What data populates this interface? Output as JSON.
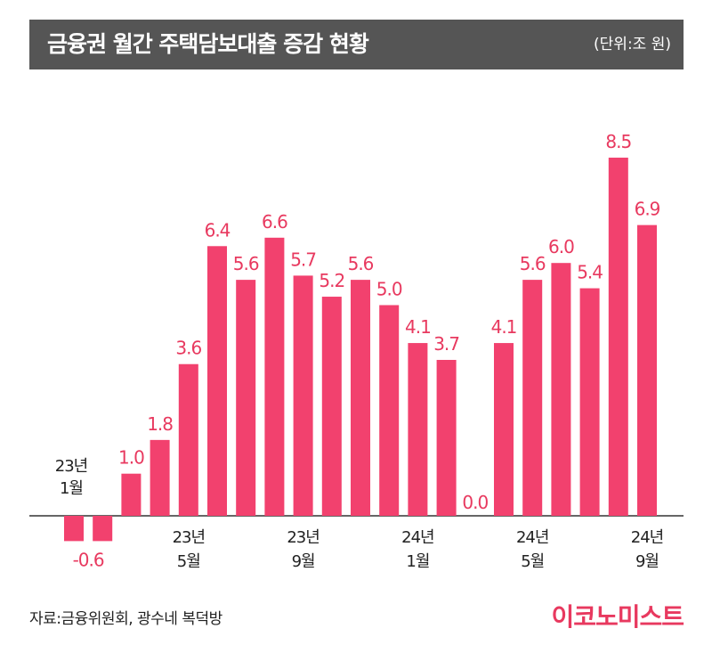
{
  "header": {
    "title": "금융권 월간 주택담보대출 증감 현황",
    "unit": "(단위:조 원)"
  },
  "footer": {
    "source": "자료:금융위원회, 광수네 복덕방",
    "logo": "이코노미스트"
  },
  "colors": {
    "bar": "#f2416e",
    "label": "#e8395f",
    "axis": "#333333",
    "title_bg": "#555555"
  },
  "chart_data": {
    "type": "bar",
    "title": "금융권 월간 주택담보대출 증감 현황",
    "unit": "(단위:조 원)",
    "categories": [
      "23.1",
      "23.2",
      "23.3",
      "23.4",
      "23.5",
      "23.6",
      "23.7",
      "23.8",
      "23.9",
      "23.10",
      "23.11",
      "23.12",
      "24.1",
      "24.2",
      "24.3",
      "24.4",
      "24.5",
      "24.6",
      "24.7",
      "24.8",
      "24.9"
    ],
    "values": [
      -0.6,
      -0.6,
      1.0,
      1.8,
      3.6,
      6.4,
      5.6,
      6.6,
      5.7,
      5.2,
      5.6,
      5.0,
      4.1,
      3.7,
      0.0,
      4.1,
      5.6,
      6.0,
      5.4,
      8.5,
      6.9
    ],
    "value_labels": [
      "",
      "-0.6",
      "1.0",
      "1.8",
      "3.6",
      "6.4",
      "5.6",
      "6.6",
      "5.7",
      "5.2",
      "5.6",
      "5.0",
      "4.1",
      "3.7",
      "0.0",
      "4.1",
      "5.6",
      "6.0",
      "5.4",
      "8.5",
      "6.9"
    ],
    "x_ticks": [
      {
        "index": 0,
        "year": "23년",
        "month": "1월"
      },
      {
        "index": 4,
        "year": "23년",
        "month": "5월"
      },
      {
        "index": 8,
        "year": "23년",
        "month": "9월"
      },
      {
        "index": 12,
        "year": "24년",
        "month": "1월"
      },
      {
        "index": 16,
        "year": "24년",
        "month": "5월"
      },
      {
        "index": 20,
        "year": "24년",
        "month": "9월"
      }
    ],
    "ylim": [
      -1.0,
      9.0
    ],
    "grid": false,
    "legend": "none"
  }
}
